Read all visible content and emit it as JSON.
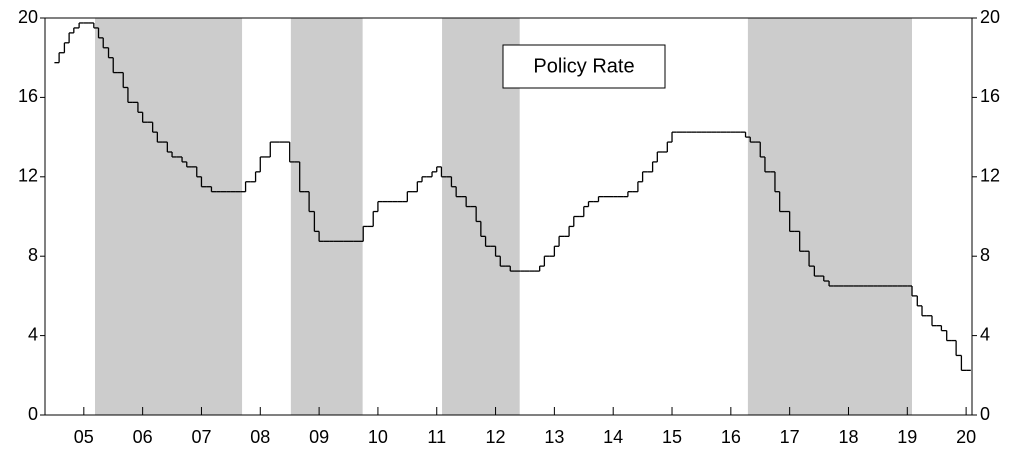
{
  "chart_data": {
    "type": "step",
    "annotation": "Policy Rate",
    "xlim": [
      2004.84,
      2020.6
    ],
    "xticks": [
      {
        "value": 2005.5,
        "label": "05"
      },
      {
        "value": 2006.5,
        "label": "06"
      },
      {
        "value": 2007.5,
        "label": "07"
      },
      {
        "value": 2008.5,
        "label": "08"
      },
      {
        "value": 2009.5,
        "label": "09"
      },
      {
        "value": 2010.5,
        "label": "10"
      },
      {
        "value": 2011.5,
        "label": "11"
      },
      {
        "value": 2012.5,
        "label": "12"
      },
      {
        "value": 2013.5,
        "label": "13"
      },
      {
        "value": 2014.5,
        "label": "14"
      },
      {
        "value": 2015.5,
        "label": "15"
      },
      {
        "value": 2016.5,
        "label": "16"
      },
      {
        "value": 2017.5,
        "label": "17"
      },
      {
        "value": 2018.5,
        "label": "18"
      },
      {
        "value": 2019.5,
        "label": "19"
      },
      {
        "value": 2020.5,
        "label": "20"
      }
    ],
    "ylim": [
      0,
      20
    ],
    "yticks": [
      0,
      4,
      8,
      12,
      16,
      20
    ],
    "y2lim": [
      0,
      20
    ],
    "y2ticks": [
      0,
      4,
      8,
      12,
      16,
      20
    ],
    "shaded_periods": [
      [
        2005.69,
        2008.19
      ],
      [
        2009.02,
        2010.24
      ],
      [
        2011.59,
        2012.91
      ],
      [
        2016.79,
        2019.58
      ]
    ],
    "shade_color": "#cccccc",
    "color": "#000000",
    "x": [
      2005,
      2005.08,
      2005.17,
      2005.25,
      2005.33,
      2005.42,
      2005.5,
      2005.58,
      2005.67,
      2005.75,
      2005.83,
      2005.92,
      2006,
      2006.08,
      2006.17,
      2006.25,
      2006.33,
      2006.42,
      2006.5,
      2006.58,
      2006.67,
      2006.75,
      2006.83,
      2006.92,
      2007,
      2007.08,
      2007.17,
      2007.25,
      2007.33,
      2007.42,
      2007.5,
      2007.58,
      2007.67,
      2007.75,
      2007.83,
      2007.92,
      2008,
      2008.08,
      2008.17,
      2008.25,
      2008.33,
      2008.42,
      2008.5,
      2008.58,
      2008.67,
      2008.75,
      2008.83,
      2008.92,
      2009,
      2009.08,
      2009.17,
      2009.25,
      2009.33,
      2009.42,
      2009.5,
      2009.58,
      2009.67,
      2009.75,
      2009.83,
      2009.92,
      2010,
      2010.08,
      2010.17,
      2010.25,
      2010.33,
      2010.42,
      2010.5,
      2010.58,
      2010.67,
      2010.75,
      2010.83,
      2010.92,
      2011,
      2011.08,
      2011.17,
      2011.25,
      2011.33,
      2011.42,
      2011.5,
      2011.58,
      2011.67,
      2011.75,
      2011.83,
      2011.92,
      2012,
      2012.08,
      2012.17,
      2012.25,
      2012.33,
      2012.42,
      2012.5,
      2012.58,
      2012.67,
      2012.75,
      2012.83,
      2012.92,
      2013,
      2013.08,
      2013.17,
      2013.25,
      2013.33,
      2013.42,
      2013.5,
      2013.58,
      2013.67,
      2013.75,
      2013.83,
      2013.92,
      2014,
      2014.08,
      2014.17,
      2014.25,
      2014.33,
      2014.42,
      2014.5,
      2014.58,
      2014.67,
      2014.75,
      2014.83,
      2014.92,
      2015,
      2015.08,
      2015.17,
      2015.25,
      2015.33,
      2015.42,
      2015.5,
      2015.58,
      2015.67,
      2015.75,
      2015.83,
      2015.92,
      2016,
      2016.08,
      2016.17,
      2016.25,
      2016.33,
      2016.42,
      2016.5,
      2016.58,
      2016.67,
      2016.75,
      2016.83,
      2016.92,
      2017,
      2017.08,
      2017.17,
      2017.25,
      2017.33,
      2017.42,
      2017.5,
      2017.58,
      2017.67,
      2017.75,
      2017.83,
      2017.92,
      2018,
      2018.08,
      2018.17,
      2018.25,
      2018.33,
      2018.42,
      2018.5,
      2018.58,
      2018.67,
      2018.75,
      2018.83,
      2018.92,
      2019,
      2019.08,
      2019.17,
      2019.25,
      2019.33,
      2019.42,
      2019.5,
      2019.58,
      2019.67,
      2019.75,
      2019.83,
      2019.92,
      2020,
      2020.08,
      2020.17,
      2020.25,
      2020.33,
      2020.42,
      2020.5
    ],
    "values": [
      17.75,
      18.25,
      18.75,
      19.25,
      19.5,
      19.75,
      19.75,
      19.75,
      19.5,
      19,
      18.5,
      18,
      17.25,
      17.25,
      16.5,
      15.75,
      15.75,
      15.25,
      14.75,
      14.75,
      14.25,
      13.75,
      13.75,
      13.25,
      13,
      13,
      12.75,
      12.5,
      12.5,
      12,
      11.5,
      11.5,
      11.25,
      11.25,
      11.25,
      11.25,
      11.25,
      11.25,
      11.25,
      11.75,
      11.75,
      12.25,
      13,
      13,
      13.75,
      13.75,
      13.75,
      13.75,
      12.75,
      12.75,
      11.25,
      11.25,
      10.25,
      9.25,
      8.75,
      8.75,
      8.75,
      8.75,
      8.75,
      8.75,
      8.75,
      8.75,
      8.75,
      9.5,
      9.5,
      10.25,
      10.75,
      10.75,
      10.75,
      10.75,
      10.75,
      10.75,
      11.25,
      11.25,
      11.75,
      12,
      12,
      12.25,
      12.5,
      12,
      12,
      11.5,
      11,
      11,
      10.5,
      10.5,
      9.75,
      9,
      8.5,
      8.5,
      8,
      7.5,
      7.5,
      7.25,
      7.25,
      7.25,
      7.25,
      7.25,
      7.25,
      7.5,
      8,
      8,
      8.5,
      9,
      9,
      9.5,
      10,
      10,
      10.5,
      10.75,
      10.75,
      11,
      11,
      11,
      11,
      11,
      11,
      11.25,
      11.25,
      11.75,
      12.25,
      12.25,
      12.75,
      13.25,
      13.25,
      13.75,
      14.25,
      14.25,
      14.25,
      14.25,
      14.25,
      14.25,
      14.25,
      14.25,
      14.25,
      14.25,
      14.25,
      14.25,
      14.25,
      14.25,
      14.25,
      14,
      13.75,
      13.75,
      13,
      12.25,
      12.25,
      11.25,
      10.25,
      10.25,
      9.25,
      9.25,
      8.25,
      8.25,
      7.5,
      7,
      7,
      6.75,
      6.5,
      6.5,
      6.5,
      6.5,
      6.5,
      6.5,
      6.5,
      6.5,
      6.5,
      6.5,
      6.5,
      6.5,
      6.5,
      6.5,
      6.5,
      6.5,
      6.5,
      6,
      5.5,
      5,
      5,
      4.5,
      4.5,
      4.25,
      3.75,
      3.75,
      3,
      2.25,
      2.25
    ]
  }
}
